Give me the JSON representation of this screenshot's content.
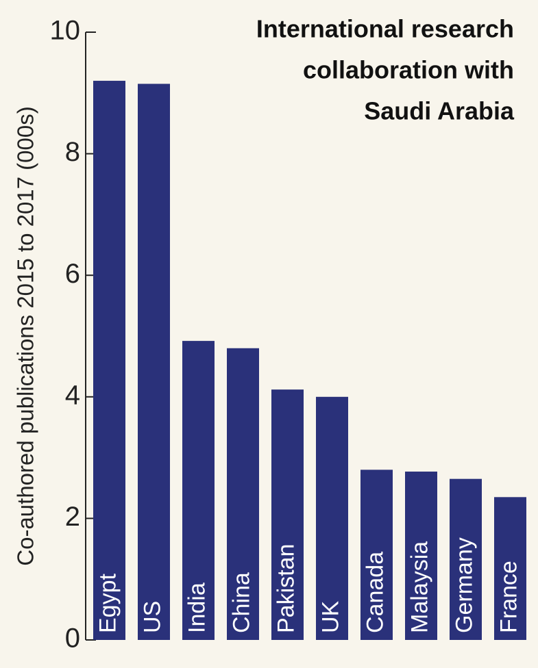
{
  "chart_data": {
    "type": "bar",
    "title_lines": [
      "International research",
      "collaboration with",
      "Saudi Arabia"
    ],
    "y_label": "Co-authored publications 2015 to 2017 (000s)",
    "categories": [
      "Egypt",
      "US",
      "India",
      "China",
      "Pakistan",
      "UK",
      "Canada",
      "Malaysia",
      "Germany",
      "France"
    ],
    "values": [
      9.2,
      9.15,
      4.92,
      4.8,
      4.12,
      4.0,
      2.8,
      2.77,
      2.65,
      2.35
    ],
    "color": "#2a317a",
    "ylim": [
      0,
      10
    ],
    "yticks": [
      0,
      2,
      4,
      6,
      8,
      10
    ]
  }
}
